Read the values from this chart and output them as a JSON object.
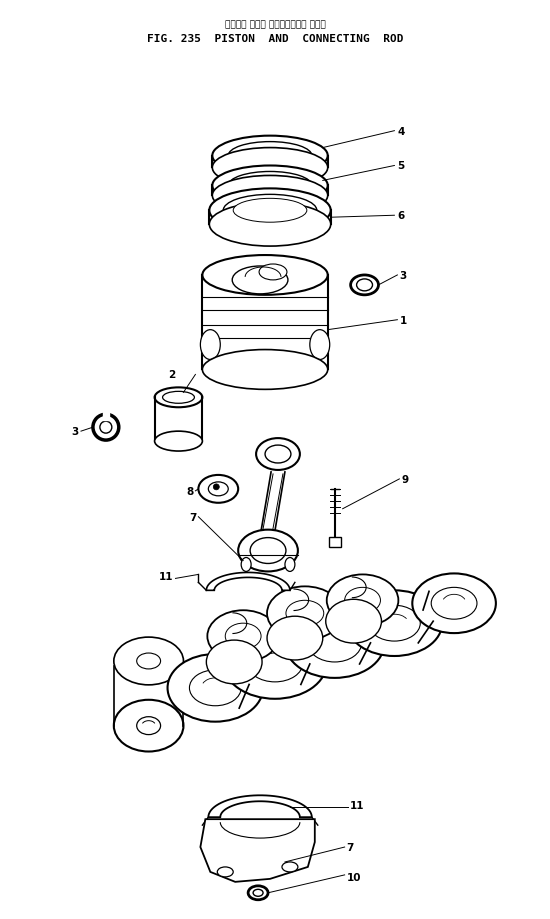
{
  "title_jp": "ピストン および コネクティング ロッド",
  "title_en": "FIG. 235  PISTON  AND  CONNECTING  ROD",
  "bg_color": "#ffffff",
  "lc": "#000000",
  "figsize": [
    5.5,
    9.2
  ],
  "dpi": 100,
  "lw": 0.9,
  "label_fs": 7.5
}
